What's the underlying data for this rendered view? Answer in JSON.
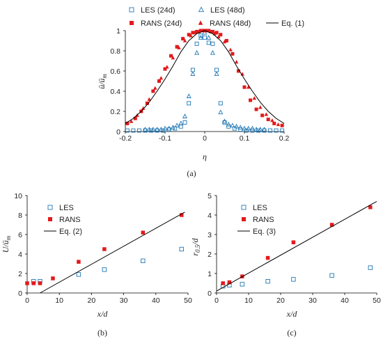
{
  "chart_data": [
    {
      "type": "scatter",
      "panel_label": "(a)",
      "xlabel": "η",
      "ylabel": "ū/ū_m",
      "xlim": [
        -0.2,
        0.2
      ],
      "ylim": [
        0,
        1
      ],
      "xticks": [
        "-0.2",
        "-0.1",
        "0",
        "0.1",
        "0.2"
      ],
      "yticks": [
        "0",
        "0.2",
        "0.4",
        "0.6",
        "0.8",
        "1"
      ],
      "legend_position": "top",
      "series": [
        {
          "name": "LES (24d)",
          "marker": "open-square",
          "color": "#1f77b4",
          "x": [
            -0.195,
            -0.18,
            -0.165,
            -0.15,
            -0.135,
            -0.12,
            -0.105,
            -0.09,
            -0.075,
            -0.06,
            -0.05,
            -0.04,
            -0.03,
            -0.02,
            -0.01,
            0.0,
            0.01,
            0.02,
            0.03,
            0.04,
            0.05,
            0.06,
            0.075,
            0.09,
            0.105,
            0.12,
            0.135,
            0.15,
            0.165,
            0.18,
            0.195
          ],
          "y": [
            0.01,
            0.01,
            0.01,
            0.01,
            0.01,
            0.01,
            0.01,
            0.02,
            0.03,
            0.05,
            0.09,
            0.28,
            0.61,
            0.87,
            0.95,
            0.93,
            0.88,
            0.87,
            0.61,
            0.28,
            0.09,
            0.05,
            0.03,
            0.02,
            0.01,
            0.01,
            0.01,
            0.01,
            0.01,
            0.01,
            0.01
          ]
        },
        {
          "name": "LES (48d)",
          "marker": "open-triangle",
          "color": "#1f77b4",
          "x": [
            -0.15,
            -0.14,
            -0.13,
            -0.12,
            -0.11,
            -0.1,
            -0.09,
            -0.08,
            -0.07,
            -0.06,
            -0.05,
            -0.04,
            -0.03,
            -0.02,
            -0.01,
            0.0,
            0.01,
            0.02,
            0.03,
            0.04,
            0.05,
            0.06,
            0.07,
            0.08,
            0.09,
            0.1,
            0.11,
            0.12,
            0.13,
            0.14,
            0.15
          ],
          "y": [
            0.02,
            0.02,
            0.02,
            0.02,
            0.02,
            0.03,
            0.03,
            0.04,
            0.06,
            0.08,
            0.15,
            0.35,
            0.57,
            0.78,
            0.93,
            0.98,
            0.93,
            0.78,
            0.57,
            0.19,
            0.1,
            0.07,
            0.06,
            0.05,
            0.04,
            0.03,
            0.03,
            0.03,
            0.02,
            0.02,
            0.02
          ]
        },
        {
          "name": "RANS (24d)",
          "marker": "filled-square",
          "color": "#e31a1c",
          "x": [
            -0.195,
            -0.175,
            -0.16,
            -0.145,
            -0.13,
            -0.115,
            -0.1,
            -0.085,
            -0.07,
            -0.055,
            -0.04,
            -0.03,
            -0.02,
            -0.01,
            0.0,
            0.01,
            0.02,
            0.03,
            0.04,
            0.055,
            0.07,
            0.085,
            0.1,
            0.115,
            0.13,
            0.145,
            0.16,
            0.175,
            0.195
          ],
          "y": [
            0.08,
            0.13,
            0.2,
            0.28,
            0.4,
            0.5,
            0.62,
            0.75,
            0.84,
            0.92,
            0.96,
            0.98,
            0.99,
            1.0,
            1.0,
            1.0,
            0.99,
            0.98,
            0.96,
            0.9,
            0.77,
            0.6,
            0.44,
            0.31,
            0.22,
            0.16,
            0.12,
            0.08,
            0.06
          ]
        },
        {
          "name": "RANS (48d)",
          "marker": "filled-triangle",
          "color": "#e31a1c",
          "x": [
            -0.185,
            -0.17,
            -0.155,
            -0.14,
            -0.125,
            -0.11,
            -0.095,
            -0.08,
            -0.065,
            -0.05,
            -0.035,
            -0.025,
            -0.015,
            -0.005,
            0.005,
            0.015,
            0.025,
            0.035,
            0.05,
            0.065,
            0.08,
            0.095,
            0.11,
            0.125,
            0.14,
            0.155,
            0.17,
            0.185
          ],
          "y": [
            0.1,
            0.16,
            0.23,
            0.32,
            0.43,
            0.53,
            0.64,
            0.73,
            0.83,
            0.9,
            0.95,
            0.98,
            0.99,
            1.0,
            1.0,
            0.99,
            0.97,
            0.94,
            0.89,
            0.81,
            0.69,
            0.57,
            0.44,
            0.33,
            0.24,
            0.17,
            0.11,
            0.07
          ]
        },
        {
          "name": "Eq. (1)",
          "marker": "line",
          "color": "#000000",
          "x": [
            -0.2,
            -0.18,
            -0.16,
            -0.14,
            -0.12,
            -0.1,
            -0.08,
            -0.06,
            -0.04,
            -0.02,
            0.0,
            0.02,
            0.04,
            0.06,
            0.08,
            0.1,
            0.12,
            0.14,
            0.16,
            0.18,
            0.2
          ],
          "y": [
            0.08,
            0.13,
            0.2,
            0.29,
            0.4,
            0.52,
            0.65,
            0.79,
            0.9,
            0.97,
            1.0,
            0.97,
            0.9,
            0.79,
            0.65,
            0.52,
            0.4,
            0.29,
            0.2,
            0.13,
            0.08
          ]
        }
      ]
    },
    {
      "type": "scatter",
      "panel_label": "(b)",
      "xlabel": "x/d",
      "ylabel": "U/ū_m",
      "xlim": [
        0,
        50
      ],
      "ylim": [
        0,
        10
      ],
      "xticks": [
        "0",
        "10",
        "20",
        "30",
        "40",
        "50"
      ],
      "yticks": [
        "0",
        "2",
        "4",
        "6",
        "8",
        "10"
      ],
      "legend_position": "top-left",
      "series": [
        {
          "name": "LES",
          "marker": "open-square",
          "color": "#1f77b4",
          "x": [
            2,
            4,
            16,
            24,
            36,
            48
          ],
          "y": [
            1.2,
            1.2,
            1.9,
            2.4,
            3.3,
            4.5
          ]
        },
        {
          "name": "RANS",
          "marker": "filled-square",
          "color": "#e31a1c",
          "x": [
            0,
            2,
            4,
            8,
            16,
            24,
            36,
            48
          ],
          "y": [
            1.0,
            1.0,
            1.0,
            1.5,
            3.2,
            4.5,
            6.2,
            8.0
          ]
        },
        {
          "name": "Eq. (2)",
          "marker": "line",
          "color": "#000000",
          "x": [
            4,
            49
          ],
          "y": [
            0,
            8.3
          ]
        }
      ]
    },
    {
      "type": "scatter",
      "panel_label": "(c)",
      "xlabel": "x/d",
      "ylabel": "r0.5/d",
      "xlim": [
        0,
        50
      ],
      "ylim": [
        0,
        5
      ],
      "xticks": [
        "0",
        "10",
        "20",
        "30",
        "40",
        "50"
      ],
      "yticks": [
        "0",
        "1",
        "2",
        "3",
        "4",
        "5"
      ],
      "legend_position": "top-left",
      "series": [
        {
          "name": "LES",
          "marker": "open-square",
          "color": "#1f77b4",
          "x": [
            2,
            4,
            8,
            16,
            24,
            36,
            48
          ],
          "y": [
            0.35,
            0.4,
            0.45,
            0.6,
            0.7,
            0.9,
            1.3
          ]
        },
        {
          "name": "RANS",
          "marker": "filled-square",
          "color": "#e31a1c",
          "x": [
            2,
            4,
            8,
            16,
            24,
            36,
            48
          ],
          "y": [
            0.5,
            0.55,
            0.85,
            1.8,
            2.6,
            3.5,
            4.4
          ]
        },
        {
          "name": "Eq. (3)",
          "marker": "line",
          "color": "#000000",
          "x": [
            0,
            50
          ],
          "y": [
            0.1,
            4.7
          ]
        }
      ]
    }
  ]
}
